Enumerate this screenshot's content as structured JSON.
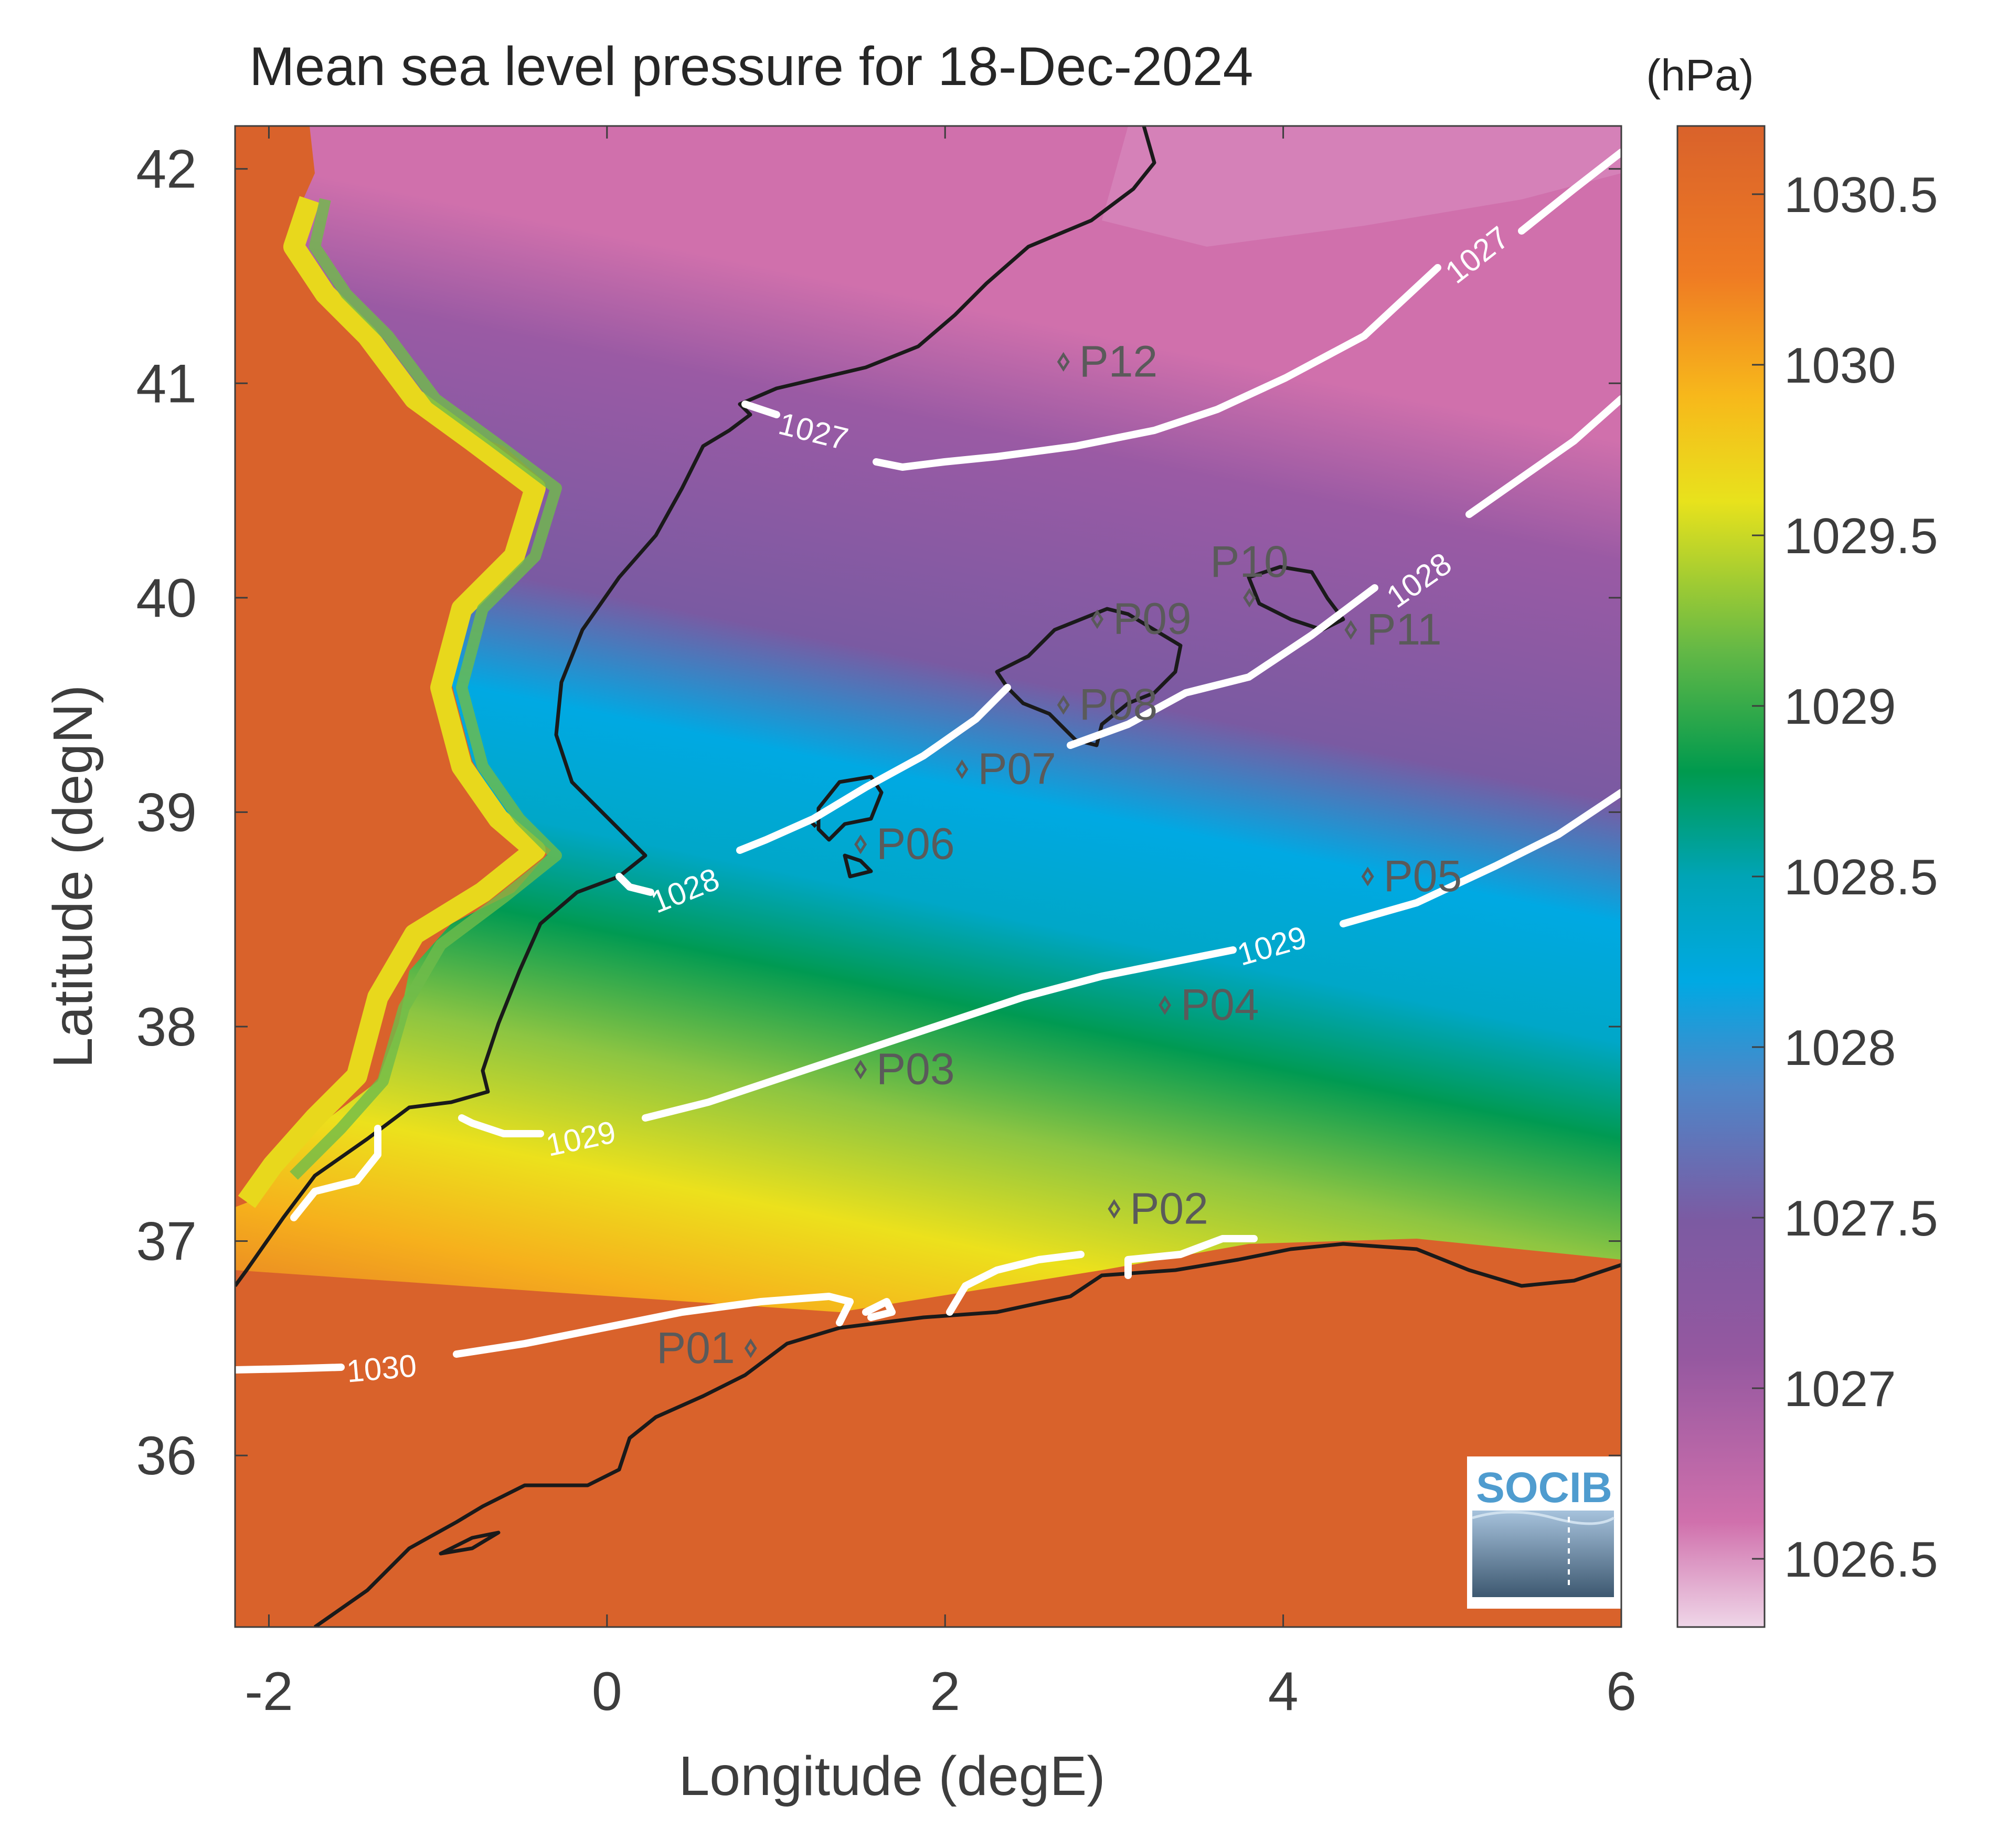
{
  "title": "Mean sea level pressure for 18-Dec-2024",
  "units": "(hPa)",
  "axes": {
    "xlabel": "Longitude (degE)",
    "ylabel": "Latitude (degN)",
    "xlim": [
      -2.2,
      6.0
    ],
    "ylim": [
      35.2,
      42.2
    ],
    "xticks": [
      -2,
      0,
      2,
      4,
      6
    ],
    "yticks": [
      36,
      37,
      38,
      39,
      40,
      41,
      42
    ]
  },
  "colorbar": {
    "range": [
      1026.3,
      1030.7
    ],
    "ticks": [
      "1030.5",
      "1030",
      "1029.5",
      "1029",
      "1028.5",
      "1028",
      "1027.5",
      "1027",
      "1026.5"
    ],
    "colors": [
      "#e8c8e0",
      "#c75aa3",
      "#8a58a0",
      "#6e6aaa",
      "#3e8fcd",
      "#00a6e0",
      "#00a3a8",
      "#009a52",
      "#7fc242",
      "#e6e11c",
      "#f6b21c",
      "#ee7a23",
      "#d9622b"
    ]
  },
  "contours": [
    {
      "label": "1027"
    },
    {
      "label": "1027"
    },
    {
      "label": "1028"
    },
    {
      "label": "1028"
    },
    {
      "label": "1029"
    },
    {
      "label": "1029"
    },
    {
      "label": "1030"
    }
  ],
  "stations": [
    {
      "name": "P01",
      "lon": 0.85,
      "lat": 36.5
    },
    {
      "name": "P02",
      "lon": 3.0,
      "lat": 37.15
    },
    {
      "name": "P03",
      "lon": 1.5,
      "lat": 37.8
    },
    {
      "name": "P04",
      "lon": 3.3,
      "lat": 38.1
    },
    {
      "name": "P05",
      "lon": 4.5,
      "lat": 38.7
    },
    {
      "name": "P06",
      "lon": 1.5,
      "lat": 38.85
    },
    {
      "name": "P07",
      "lon": 2.1,
      "lat": 39.2
    },
    {
      "name": "P08",
      "lon": 2.7,
      "lat": 39.5
    },
    {
      "name": "P09",
      "lon": 2.9,
      "lat": 39.9
    },
    {
      "name": "P10",
      "lon": 3.8,
      "lat": 40.0
    },
    {
      "name": "P11",
      "lon": 4.4,
      "lat": 39.85
    },
    {
      "name": "P12",
      "lon": 2.7,
      "lat": 41.1
    }
  ],
  "logo": {
    "text": "SOCIB"
  }
}
